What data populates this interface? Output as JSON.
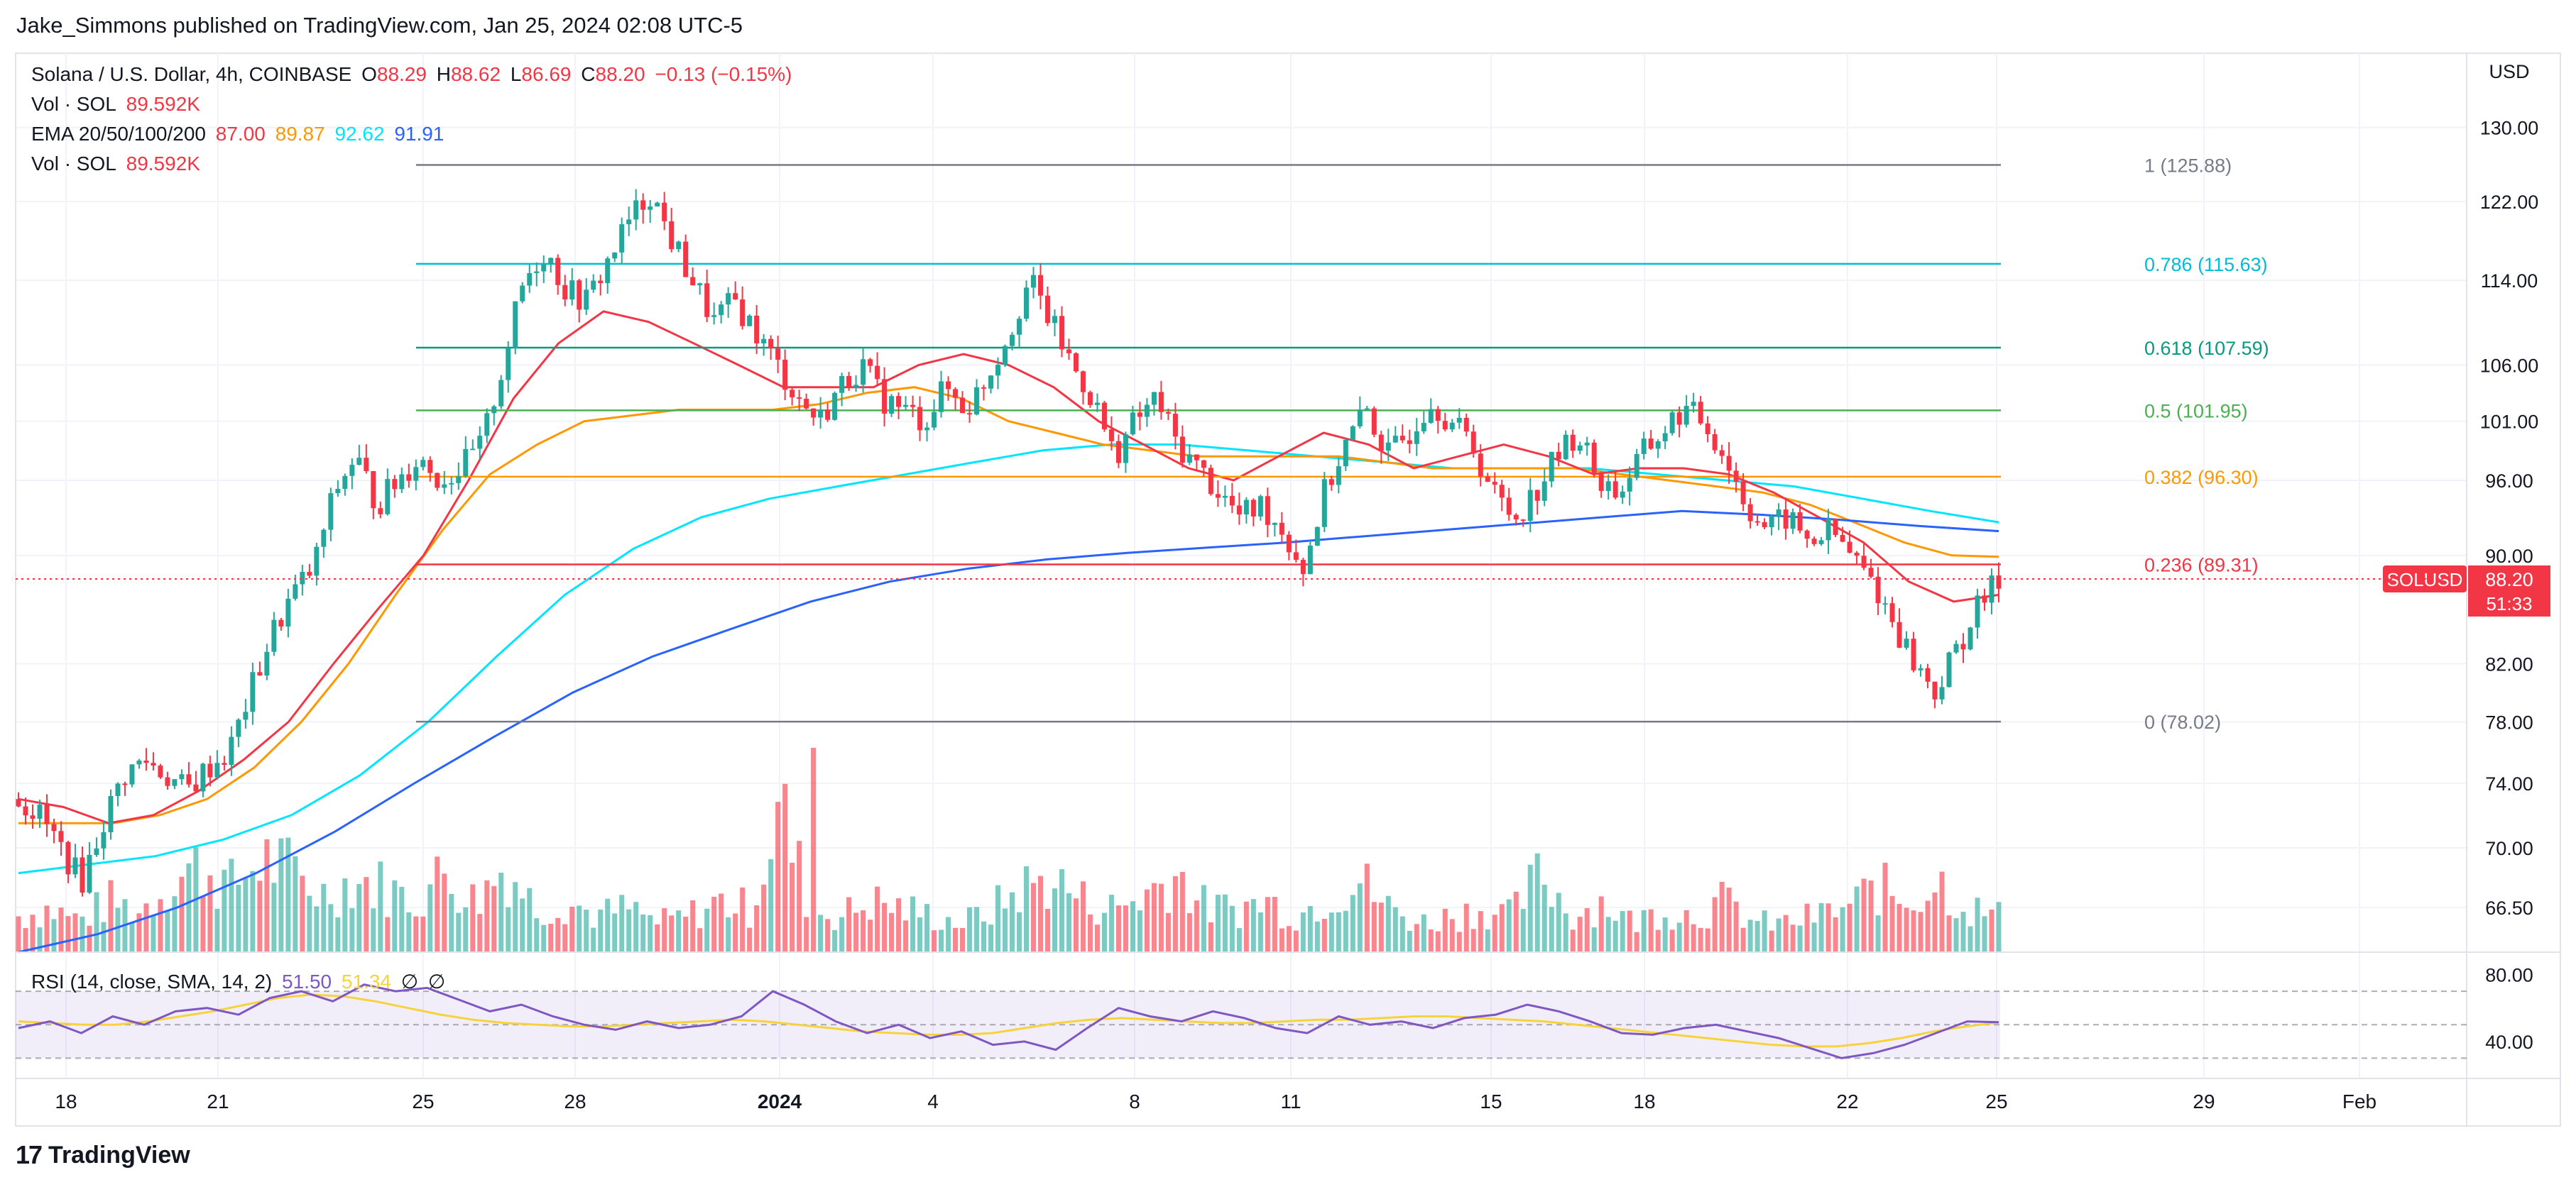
{
  "attribution": "Jake_Simmons published on TradingView.com, Jan 25, 2024 02:08 UTC-5",
  "legend": {
    "symbol": "Solana / U.S. Dollar, 4h, COINBASE",
    "open_label": "O",
    "open": "88.29",
    "high_label": "H",
    "high": "88.62",
    "low_label": "L",
    "low": "86.69",
    "close_label": "C",
    "close": "88.20",
    "change": "−0.13 (−0.15%)",
    "vol_label": "Vol · SOL",
    "vol_value": "89.592K",
    "ema_label": "EMA 20/50/100/200",
    "ema20": "87.00",
    "ema50": "89.87",
    "ema100": "92.62",
    "ema200": "91.91",
    "vol2_label": "Vol · SOL",
    "vol2_value": "89.592K",
    "rsi_label": "RSI (14, close, SMA, 14, 2)",
    "rsi_value": "51.50",
    "rsi_sma": "51.34",
    "rsi_extra1": "∅",
    "rsi_extra2": "∅"
  },
  "currency": "USD",
  "price_tag": {
    "symbol": "SOLUSD",
    "price": "88.20",
    "countdown": "51:33"
  },
  "footer": {
    "brand": "TradingView"
  },
  "colors": {
    "up": "#26a69a",
    "down": "#f23645",
    "ema20": "#f23645",
    "ema50": "#ff9800",
    "ema100": "#00e5ff",
    "ema200": "#2962ff",
    "rsi": "#7e57c2",
    "rsi_sma": "#f7d33b"
  },
  "chart_data": {
    "type": "candlestick",
    "x_ticks": [
      "18",
      "21",
      "25",
      "28",
      "2024",
      "4",
      "8",
      "11",
      "15",
      "18",
      "22",
      "25",
      "29",
      "Feb"
    ],
    "y_ticks": [
      130.0,
      122.0,
      114.0,
      106.0,
      101.0,
      96.0,
      90.0,
      82.0,
      78.0,
      74.0,
      70.0,
      66.5
    ],
    "ylim": [
      64.0,
      134.0
    ],
    "log_scale": true,
    "fib_levels": [
      {
        "label": "1 (125.88)",
        "value": 125.88,
        "color": "#787b86"
      },
      {
        "label": "0.786 (115.63)",
        "value": 115.63,
        "color": "#00bcd4"
      },
      {
        "label": "0.618 (107.59)",
        "value": 107.59,
        "color": "#089981"
      },
      {
        "label": "0.5 (101.95)",
        "value": 101.95,
        "color": "#4caf50"
      },
      {
        "label": "0.382 (96.30)",
        "value": 96.3,
        "color": "#ff9800"
      },
      {
        "label": "0.236 (89.31)",
        "value": 89.31,
        "color": "#f23645"
      },
      {
        "label": "0 (78.02)",
        "value": 78.02,
        "color": "#787b86"
      }
    ],
    "close_trend": [
      73.0,
      72.0,
      70.0,
      68.0,
      71.5,
      74.5,
      75.5,
      74.5,
      73.5,
      75.0,
      76.0,
      80.0,
      84.0,
      87.0,
      89.0,
      95.0,
      98.0,
      94.0,
      96.0,
      98.0,
      96.0,
      97.0,
      99.0,
      106.0,
      114.0,
      117.0,
      113.0,
      112.0,
      116.0,
      120.0,
      123.0,
      118.0,
      114.0,
      110.0,
      112.0,
      109.0,
      106.0,
      103.0,
      101.0,
      104.0,
      106.0,
      103.0,
      102.0,
      101.0,
      104.0,
      102.0,
      105.0,
      109.0,
      114.0,
      110.0,
      106.0,
      103.0,
      98.0,
      101.0,
      103.0,
      99.0,
      97.0,
      95.0,
      93.0,
      94.0,
      92.0,
      89.0,
      95.0,
      99.0,
      102.0,
      98.0,
      100.0,
      103.0,
      101.0,
      99.0,
      95.0,
      93.0,
      95.0,
      98.0,
      100.0,
      96.0,
      95.0,
      98.0,
      100.0,
      102.0,
      101.0,
      98.0,
      94.0,
      92.0,
      93.0,
      91.0,
      92.0,
      90.0,
      88.0,
      85.0,
      82.0,
      80.0,
      83.0,
      86.0,
      88.2
    ],
    "ema_lines": {
      "ema20": [
        73.0,
        72.5,
        71.5,
        72.0,
        73.5,
        75.5,
        78.0,
        82.0,
        86.0,
        90.0,
        96.0,
        103.0,
        108.0,
        111.0,
        110.0,
        108.0,
        106.0,
        104.0,
        104.0,
        104.0,
        106.0,
        107.0,
        106.0,
        104.0,
        101.0,
        99.0,
        97.0,
        96.0,
        98.0,
        100.0,
        99.0,
        97.0,
        98.0,
        99.0,
        98.0,
        96.5,
        97.0,
        97.0,
        96.5,
        95.0,
        93.0,
        91.0,
        88.0,
        86.5,
        87.0
      ],
      "ema50": [
        71.5,
        71.5,
        71.5,
        72.0,
        73.0,
        75.0,
        78.0,
        82.0,
        87.0,
        92.0,
        96.5,
        99.0,
        101.0,
        101.5,
        102.0,
        102.0,
        102.0,
        102.5,
        103.5,
        104.0,
        103.0,
        101.0,
        100.0,
        99.0,
        98.5,
        98.0,
        98.0,
        98.0,
        98.0,
        97.5,
        97.0,
        97.0,
        97.0,
        97.0,
        96.5,
        96.0,
        95.5,
        95.0,
        94.0,
        92.5,
        91.0,
        90.0,
        89.9
      ],
      "ema100": [
        68.5,
        69.0,
        69.5,
        70.5,
        72.0,
        74.5,
        78.0,
        82.5,
        87.0,
        90.5,
        93.0,
        94.5,
        95.5,
        96.5,
        97.5,
        98.5,
        99.0,
        99.0,
        98.5,
        98.0,
        97.5,
        97.0,
        97.0,
        97.0,
        96.5,
        96.0,
        95.5,
        94.5,
        93.5,
        92.6
      ],
      "ema200": [
        64.0,
        65.0,
        66.5,
        68.5,
        71.0,
        74.0,
        77.0,
        80.0,
        82.5,
        84.5,
        86.5,
        88.0,
        89.0,
        89.7,
        90.2,
        90.6,
        91.0,
        91.5,
        92.0,
        92.5,
        93.0,
        93.5,
        93.2,
        92.8,
        92.3,
        91.9
      ]
    },
    "volume_trend": [
      0.25,
      0.3,
      0.22,
      0.35,
      0.28,
      0.5,
      0.6,
      0.45,
      0.65,
      0.55,
      0.4,
      0.5,
      0.45,
      0.35,
      0.55,
      0.35,
      0.6,
      0.3,
      0.35,
      0.25,
      0.3,
      0.2,
      0.25,
      0.35,
      0.3,
      1.0,
      0.3,
      0.25,
      0.35,
      0.3,
      0.25,
      0.2,
      0.3,
      0.45,
      0.5,
      0.35,
      0.3,
      0.4,
      0.55,
      0.3,
      0.3,
      0.35,
      0.25,
      0.4,
      0.5,
      0.3,
      0.2,
      0.25,
      0.3,
      0.25,
      0.55,
      0.25,
      0.35,
      0.2,
      0.3,
      0.25,
      0.35,
      0.2,
      0.2,
      0.25,
      0.3,
      0.45,
      0.35,
      0.5,
      0.3,
      0.25
    ],
    "rsi": {
      "y_ticks": [
        80.0,
        40.0
      ],
      "ylim": [
        20,
        90
      ],
      "overbought": 70,
      "oversold": 30,
      "midline": 50,
      "rsi_trend": [
        48,
        52,
        45,
        55,
        50,
        58,
        60,
        56,
        66,
        70,
        64,
        74,
        70,
        72,
        65,
        58,
        62,
        55,
        50,
        47,
        52,
        48,
        50,
        55,
        70,
        62,
        52,
        45,
        50,
        42,
        46,
        38,
        40,
        35,
        48,
        60,
        55,
        52,
        58,
        54,
        48,
        45,
        55,
        50,
        52,
        48,
        54,
        56,
        62,
        58,
        52,
        45,
        44,
        48,
        50,
        46,
        42,
        36,
        30,
        33,
        38,
        45,
        52,
        51.5
      ],
      "sma_trend": [
        52,
        51,
        50,
        50,
        52,
        55,
        58,
        62,
        66,
        68,
        67,
        64,
        60,
        56,
        53,
        51,
        50,
        49,
        49,
        50,
        51,
        52,
        53,
        52,
        50,
        48,
        46,
        45,
        44,
        44,
        45,
        48,
        51,
        53,
        54,
        53,
        52,
        51,
        51,
        52,
        53,
        53,
        54,
        55,
        55,
        54,
        53,
        52,
        50,
        48,
        46,
        44,
        42,
        40,
        38,
        37,
        37,
        39,
        42,
        46,
        49,
        51.34
      ]
    }
  }
}
